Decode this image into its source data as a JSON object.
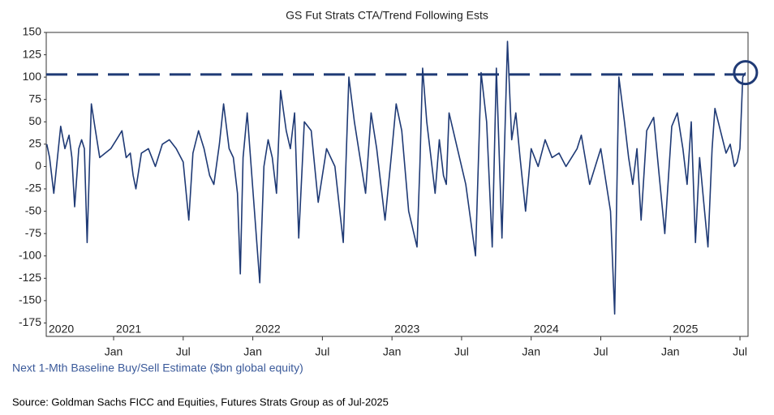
{
  "chart_data": {
    "type": "line",
    "title": "GS Fut Strats CTA/Trend Following Ests",
    "y_label": "Next 1-Mth Baseline Buy/Sell Estimate ($bn global equity)",
    "source": "Source: Goldman Sachs FICC and Equities, Futures Strats Group as of Jul-2025",
    "xlim": [
      2020.516,
      2025.558
    ],
    "ylim": [
      -190,
      150
    ],
    "yticks": [
      150,
      125,
      100,
      75,
      50,
      25,
      0,
      -25,
      -50,
      -75,
      -100,
      -125,
      -150,
      -175
    ],
    "xticks": [
      {
        "value": 2021,
        "label": "Jan"
      },
      {
        "value": 2021.5,
        "label": "Jul"
      },
      {
        "value": 2022,
        "label": "Jan"
      },
      {
        "value": 2022.5,
        "label": "Jul"
      },
      {
        "value": 2023,
        "label": "Jan"
      },
      {
        "value": 2023.5,
        "label": "Jul"
      },
      {
        "value": 2024,
        "label": "Jan"
      },
      {
        "value": 2024.5,
        "label": "Jul"
      },
      {
        "value": 2025,
        "label": "Jan"
      },
      {
        "value": 2025.5,
        "label": "Jul"
      }
    ],
    "year_labels": [
      {
        "value": 2020.516,
        "label": "2020"
      },
      {
        "value": 2021,
        "label": "2021"
      },
      {
        "value": 2022,
        "label": "2022"
      },
      {
        "value": 2023,
        "label": "2023"
      },
      {
        "value": 2024,
        "label": "2024"
      },
      {
        "value": 2025,
        "label": "2025"
      }
    ],
    "reference_line": 103,
    "series": [
      {
        "color": "#1f3a75",
        "x": [
          2020.52,
          2020.54,
          2020.57,
          2020.6,
          2020.62,
          2020.65,
          2020.68,
          2020.7,
          2020.72,
          2020.75,
          2020.77,
          2020.79,
          2020.81,
          2020.84,
          2020.87,
          2020.9,
          2020.94,
          2020.98,
          2021.02,
          2021.06,
          2021.09,
          2021.12,
          2021.14,
          2021.16,
          2021.2,
          2021.25,
          2021.3,
          2021.35,
          2021.4,
          2021.45,
          2021.5,
          2021.54,
          2021.57,
          2021.61,
          2021.65,
          2021.69,
          2021.72,
          2021.76,
          2021.79,
          2021.83,
          2021.86,
          2021.89,
          2021.91,
          2021.93,
          2021.96,
          2022.0,
          2022.05,
          2022.08,
          2022.11,
          2022.14,
          2022.17,
          2022.2,
          2022.24,
          2022.27,
          2022.3,
          2022.33,
          2022.37,
          2022.42,
          2022.47,
          2022.53,
          2022.59,
          2022.65,
          2022.69,
          2022.73,
          2022.77,
          2022.81,
          2022.85,
          2022.89,
          2022.92,
          2022.95,
          2023.0,
          2023.03,
          2023.07,
          2023.12,
          2023.18,
          2023.2,
          2023.22,
          2023.25,
          2023.28,
          2023.31,
          2023.34,
          2023.37,
          2023.39,
          2023.41,
          2023.47,
          2023.53,
          2023.6,
          2023.64,
          2023.68,
          2023.72,
          2023.75,
          2023.79,
          2023.83,
          2023.86,
          2023.89,
          2023.92,
          2023.94,
          2023.96,
          2024.0,
          2024.05,
          2024.1,
          2024.15,
          2024.2,
          2024.25,
          2024.29,
          2024.33,
          2024.36,
          2024.42,
          2024.5,
          2024.57,
          2024.6,
          2024.63,
          2024.67,
          2024.7,
          2024.73,
          2024.76,
          2024.79,
          2024.83,
          2024.88,
          2024.92,
          2024.96,
          2025.01,
          2025.05,
          2025.09,
          2025.12,
          2025.15,
          2025.18,
          2025.21,
          2025.24,
          2025.27,
          2025.3,
          2025.32,
          2025.36,
          2025.4,
          2025.43,
          2025.46,
          2025.48,
          2025.5,
          2025.52,
          2025.54
        ],
        "values": [
          25,
          10,
          -30,
          15,
          45,
          20,
          35,
          10,
          -45,
          20,
          30,
          20,
          -85,
          70,
          40,
          10,
          15,
          20,
          30,
          40,
          10,
          15,
          -10,
          -25,
          15,
          20,
          0,
          25,
          30,
          20,
          5,
          -60,
          15,
          40,
          20,
          -10,
          -20,
          25,
          70,
          20,
          10,
          -30,
          -120,
          10,
          60,
          -25,
          -130,
          0,
          30,
          10,
          -30,
          85,
          40,
          20,
          60,
          -80,
          50,
          40,
          -40,
          20,
          0,
          -85,
          100,
          50,
          10,
          -30,
          60,
          20,
          -20,
          -60,
          20,
          70,
          40,
          -50,
          -90,
          0,
          110,
          50,
          10,
          -30,
          30,
          -10,
          -20,
          60,
          20,
          -20,
          -100,
          105,
          50,
          -90,
          110,
          -80,
          140,
          30,
          60,
          10,
          -20,
          -50,
          20,
          0,
          30,
          10,
          15,
          0,
          10,
          20,
          35,
          -20,
          20,
          -50,
          -165,
          100,
          50,
          10,
          -20,
          20,
          -60,
          40,
          55,
          -10,
          -75,
          45,
          60,
          20,
          -20,
          50,
          -85,
          10,
          -40,
          -90,
          20,
          65,
          40,
          15,
          25,
          0,
          5,
          20,
          100,
          105
        ]
      }
    ]
  }
}
